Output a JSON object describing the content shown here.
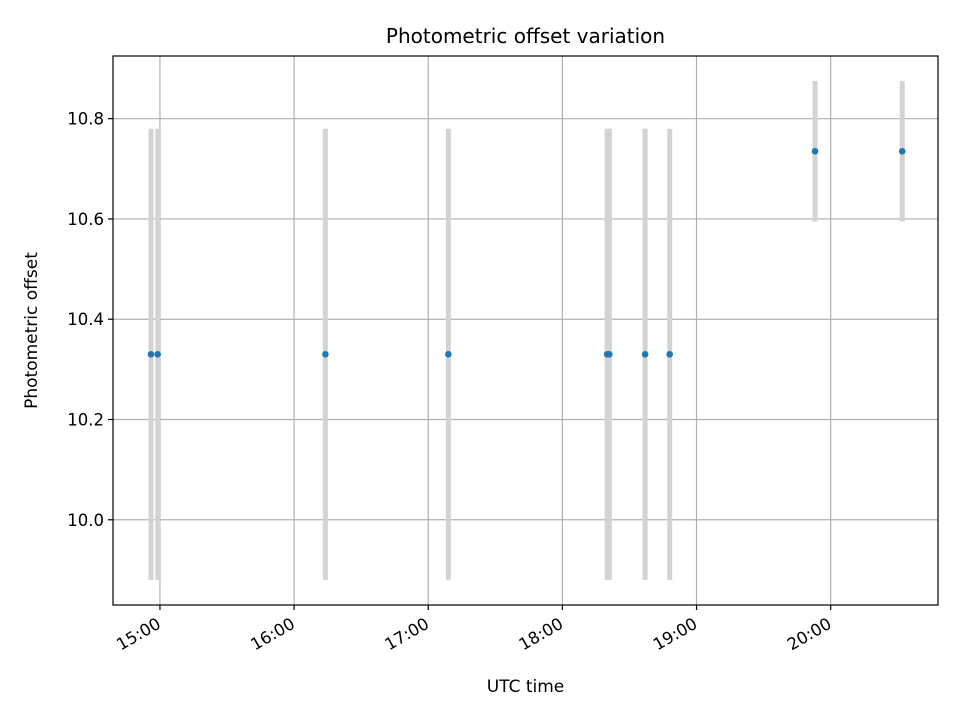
{
  "chart_data": {
    "type": "scatter",
    "title": "Photometric offset variation",
    "xlabel": "UTC time",
    "ylabel": "Photometric offset",
    "x_ticks": [
      "15:00",
      "16:00",
      "17:00",
      "18:00",
      "19:00",
      "20:00"
    ],
    "y_ticks": [
      "10.0",
      "10.2",
      "10.4",
      "10.6",
      "10.8"
    ],
    "xlim": [
      "14:39",
      "20:48"
    ],
    "ylim": [
      9.83,
      10.925
    ],
    "grid": true,
    "error_bars": true,
    "colors": {
      "point": "#1f77b4",
      "error_bar": "#d3d3d3",
      "grid": "#b0b0b0"
    },
    "points": [
      {
        "x": "14:56",
        "y": 10.33,
        "ylow": 9.88,
        "yhigh": 10.78
      },
      {
        "x": "14:59",
        "y": 10.33,
        "ylow": 9.88,
        "yhigh": 10.78
      },
      {
        "x": "16:14",
        "y": 10.33,
        "ylow": 9.88,
        "yhigh": 10.78
      },
      {
        "x": "17:09",
        "y": 10.33,
        "ylow": 9.88,
        "yhigh": 10.78
      },
      {
        "x": "18:20",
        "y": 10.33,
        "ylow": 9.88,
        "yhigh": 10.78
      },
      {
        "x": "18:21",
        "y": 10.33,
        "ylow": 9.88,
        "yhigh": 10.78
      },
      {
        "x": "18:37",
        "y": 10.33,
        "ylow": 9.88,
        "yhigh": 10.78
      },
      {
        "x": "18:48",
        "y": 10.33,
        "ylow": 9.88,
        "yhigh": 10.78
      },
      {
        "x": "19:53",
        "y": 10.735,
        "ylow": 10.595,
        "yhigh": 10.875
      },
      {
        "x": "20:32",
        "y": 10.735,
        "ylow": 10.595,
        "yhigh": 10.875
      }
    ]
  }
}
